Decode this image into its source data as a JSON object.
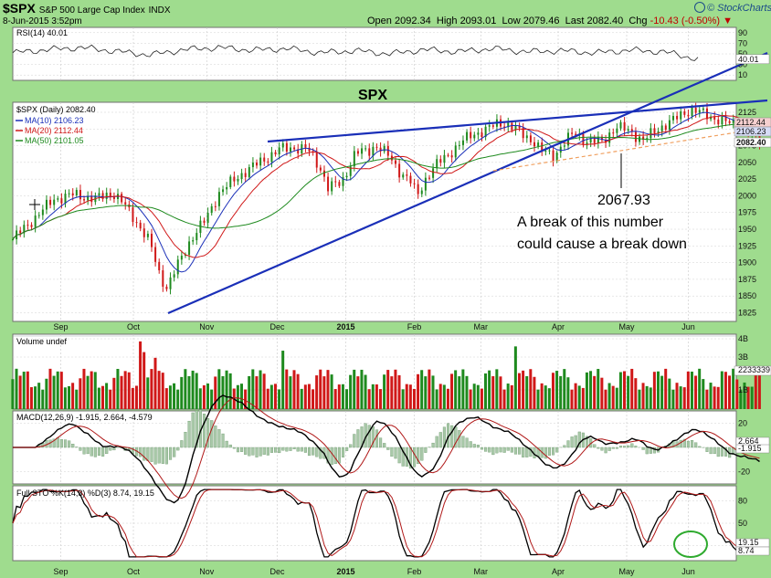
{
  "header": {
    "symbol": "$SPX",
    "name": "S&P 500 Large Cap Index",
    "exchange": "INDX",
    "datetime": "8-Jun-2015 3:52pm",
    "open_label": "Open",
    "open": "2092.34",
    "high_label": "High",
    "high": "2093.01",
    "low_label": "Low",
    "low": "2079.46",
    "last_label": "Last",
    "last": "2082.40",
    "chg_label": "Chg",
    "chg": "-10.43 (-0.50%)",
    "logo": "© StockCharts.com"
  },
  "colors": {
    "background": "#9fdc8e",
    "panel": "#ffffff",
    "up_bar": "#1e8a1e",
    "down_bar": "#d01818",
    "trendline": "#1a2fb8",
    "support_line": "#f0a060",
    "ma10": "#1a2fb8",
    "ma20": "#d01818",
    "ma50": "#1e8a1e",
    "circle": "#2eaa2e"
  },
  "chart_data": {
    "type": "stock-chart",
    "x_ticks": [
      {
        "label": "Sep",
        "t": 0.07
      },
      {
        "label": "Oct",
        "t": 0.176
      },
      {
        "label": "Nov",
        "t": 0.283
      },
      {
        "label": "Dec",
        "t": 0.386
      },
      {
        "label": "2015",
        "t": 0.486
      },
      {
        "label": "Feb",
        "t": 0.586
      },
      {
        "label": "Mar",
        "t": 0.683
      },
      {
        "label": "Apr",
        "t": 0.796
      },
      {
        "label": "May",
        "t": 0.896
      },
      {
        "label": "Jun",
        "t": 0.986
      }
    ],
    "rsi": {
      "label": "RSI(14) 40.01",
      "ylim": [
        0,
        100
      ],
      "ticks": [
        "90",
        "70",
        "50",
        "30",
        "10"
      ],
      "readout": "40.01",
      "points": [
        [
          0,
          52
        ],
        [
          0.05,
          58
        ],
        [
          0.1,
          62
        ],
        [
          0.15,
          55
        ],
        [
          0.2,
          48
        ],
        [
          0.25,
          58
        ],
        [
          0.3,
          62
        ],
        [
          0.35,
          57
        ],
        [
          0.4,
          60
        ],
        [
          0.45,
          52
        ],
        [
          0.5,
          56
        ],
        [
          0.55,
          50
        ],
        [
          0.6,
          58
        ],
        [
          0.65,
          54
        ],
        [
          0.7,
          60
        ],
        [
          0.75,
          54
        ],
        [
          0.8,
          56
        ],
        [
          0.85,
          52
        ],
        [
          0.9,
          57
        ],
        [
          0.95,
          54
        ],
        [
          1,
          40
        ]
      ]
    },
    "price": {
      "label": "$SPX (Daily) 2082.40",
      "ylim": [
        1812,
        2140
      ],
      "ticks": [
        "2125",
        "2100",
        "2075",
        "2050",
        "2025",
        "2000",
        "1975",
        "1950",
        "1925",
        "1900",
        "1875",
        "1850",
        "1825"
      ],
      "readouts": [
        "2112.44",
        "2106.23",
        "2082.40"
      ],
      "annotation_title": "SPX",
      "annotation_value": "2067.93",
      "annotation_line1": "A break of this number",
      "annotation_line2": "could cause a break down",
      "ma_legend": [
        {
          "label": "MA(10) 2106.23"
        },
        {
          "label": "MA(20) 2112.44"
        },
        {
          "label": "MA(50) 2101.05"
        }
      ],
      "close_path": [
        [
          0,
          1935
        ],
        [
          0.03,
          1965
        ],
        [
          0.06,
          1995
        ],
        [
          0.09,
          2002
        ],
        [
          0.12,
          1995
        ],
        [
          0.145,
          2005
        ],
        [
          0.16,
          1990
        ],
        [
          0.18,
          1962
        ],
        [
          0.2,
          1930
        ],
        [
          0.215,
          1880
        ],
        [
          0.225,
          1862
        ],
        [
          0.24,
          1895
        ],
        [
          0.26,
          1935
        ],
        [
          0.28,
          1962
        ],
        [
          0.3,
          2003
        ],
        [
          0.33,
          2030
        ],
        [
          0.36,
          2050
        ],
        [
          0.39,
          2070
        ],
        [
          0.41,
          2072
        ],
        [
          0.43,
          2070
        ],
        [
          0.45,
          2040
        ],
        [
          0.46,
          2012
        ],
        [
          0.48,
          2020
        ],
        [
          0.5,
          2064
        ],
        [
          0.52,
          2068
        ],
        [
          0.53,
          2076
        ],
        [
          0.55,
          2058
        ],
        [
          0.565,
          2036
        ],
        [
          0.58,
          2022
        ],
        [
          0.59,
          2000
        ],
        [
          0.605,
          2030
        ],
        [
          0.62,
          2048
        ],
        [
          0.64,
          2066
        ],
        [
          0.655,
          2080
        ],
        [
          0.67,
          2092
        ],
        [
          0.69,
          2098
        ],
        [
          0.71,
          2110
        ],
        [
          0.72,
          2108
        ],
        [
          0.74,
          2095
        ],
        [
          0.76,
          2082
        ],
        [
          0.77,
          2068
        ],
        [
          0.79,
          2060
        ],
        [
          0.8,
          2074
        ],
        [
          0.82,
          2095
        ],
        [
          0.84,
          2080
        ],
        [
          0.86,
          2082
        ],
        [
          0.88,
          2102
        ],
        [
          0.9,
          2098
        ],
        [
          0.92,
          2082
        ],
        [
          0.94,
          2100
        ],
        [
          0.96,
          2110
        ],
        [
          0.98,
          2125
        ],
        [
          0.99,
          2128
        ],
        [
          1.0,
          2126
        ],
        [
          1.02,
          2118
        ],
        [
          1.04,
          2110
        ],
        [
          1.06,
          2106
        ],
        [
          1.08,
          2092
        ],
        [
          1.09,
          2082
        ]
      ]
    },
    "volume": {
      "label": "Volume undef",
      "ticks": [
        "4B",
        "3B",
        "2233339",
        "1B"
      ]
    },
    "macd": {
      "label": "MACD(12,26,9) -1.915, 2.664, -4.579",
      "ticks": [
        "20",
        "0",
        "-20"
      ],
      "readouts": [
        "2.664",
        "-1.915"
      ]
    },
    "sto": {
      "label": "Full STO %K(14,3) %D(3) 8.74, 19.15",
      "ticks": [
        "80",
        "50",
        "20"
      ],
      "readouts": [
        "19.15",
        "8.74"
      ]
    }
  }
}
